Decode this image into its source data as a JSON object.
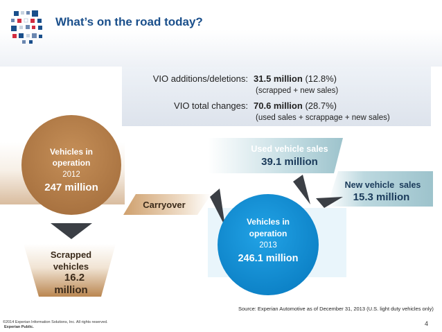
{
  "header": {
    "title": "What’s on the road today?"
  },
  "stats": {
    "rows": [
      {
        "label": "VIO additions/deletions:",
        "value": "31.5 million",
        "pct": "(12.8%)",
        "note": "(scrapped + new sales)"
      },
      {
        "label": "VIO total changes:",
        "value": "70.6 million",
        "pct": "(28.7%)",
        "note": "(used sales + scrappage + new sales)"
      }
    ]
  },
  "nodes": {
    "vio2012": {
      "line1": "Vehicles in",
      "line2": "operation",
      "line3": "2012",
      "value": "247 million"
    },
    "vio2013": {
      "line1": "Vehicles in",
      "line2": "operation",
      "line3": "2013",
      "value": "246.1 million"
    },
    "scrapped": {
      "line1": "Scrapped",
      "line2": "vehicles",
      "value1": "16.2",
      "value2": "million"
    },
    "carryover": {
      "label": "Carryover"
    },
    "used": {
      "label": "Used vehicle sales",
      "value": "39.1 million"
    },
    "newsales": {
      "label": "New vehicle  sales",
      "value": "15.3 million"
    }
  },
  "source": "Source: Experian Automotive as of December 31, 2013 (U.S. light duty vehicles only)",
  "footer": {
    "copyright": "©2014 Experian Information Solutions, Inc. All rights reserved.",
    "classification": "Experian Public.",
    "page": "4"
  },
  "colors": {
    "brown": "#b5804c",
    "blue": "#1592d6",
    "teal": "#9dc3cc",
    "title": "#1a4f8b"
  }
}
